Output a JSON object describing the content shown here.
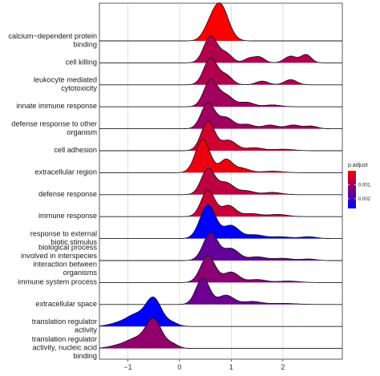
{
  "chart_data": {
    "type": "ridgeline",
    "x_ticks": [
      -1,
      0,
      1,
      2
    ],
    "xlim": [
      -1.55,
      3.15
    ],
    "grid": true,
    "legend_placement": "right",
    "color_scale": {
      "title": "p.adjust",
      "ticks": [
        0.001,
        0.002
      ],
      "tick_labels": [
        "0.001",
        "0.002"
      ],
      "domain": [
        0.0,
        0.0027
      ],
      "low_color": "#ff0000",
      "high_color": "#0000ff"
    },
    "rows": [
      {
        "label": "calcium−dependent protein binding",
        "p_adjust": 2e-05,
        "components": [
          [
            0.78,
            0.16,
            1.0
          ],
          [
            0.55,
            0.12,
            0.18
          ]
        ]
      },
      {
        "label": "cell killing",
        "p_adjust": 0.00082,
        "components": [
          [
            0.6,
            0.13,
            0.72
          ],
          [
            0.9,
            0.12,
            0.25
          ],
          [
            1.35,
            0.1,
            0.12
          ],
          [
            1.55,
            0.1,
            0.15
          ],
          [
            2.15,
            0.12,
            0.18
          ],
          [
            2.45,
            0.1,
            0.22
          ]
        ]
      },
      {
        "label": "leukocyte mediated cytotoxicity",
        "p_adjust": 0.00083,
        "components": [
          [
            0.6,
            0.13,
            0.72
          ],
          [
            0.9,
            0.12,
            0.25
          ],
          [
            1.6,
            0.12,
            0.1
          ],
          [
            2.15,
            0.12,
            0.14
          ]
        ]
      },
      {
        "label": "innate immune response",
        "p_adjust": 0.00098,
        "components": [
          [
            0.6,
            0.13,
            0.72
          ],
          [
            0.9,
            0.14,
            0.3
          ],
          [
            1.3,
            0.14,
            0.12
          ],
          [
            1.8,
            0.16,
            0.05
          ]
        ]
      },
      {
        "label": "defense response to other organism",
        "p_adjust": 0.00102,
        "components": [
          [
            0.55,
            0.13,
            0.7
          ],
          [
            0.9,
            0.14,
            0.3
          ],
          [
            1.3,
            0.14,
            0.12
          ],
          [
            1.75,
            0.14,
            0.1
          ],
          [
            2.2,
            0.14,
            0.1
          ],
          [
            2.55,
            0.12,
            0.07
          ]
        ]
      },
      {
        "label": "cell adhesion",
        "p_adjust": 0.0005,
        "components": [
          [
            0.55,
            0.13,
            0.8
          ],
          [
            0.95,
            0.15,
            0.28
          ],
          [
            1.45,
            0.16,
            0.08
          ],
          [
            2.0,
            0.2,
            0.04
          ]
        ]
      },
      {
        "label": "extracellular region",
        "p_adjust": 0.00018,
        "components": [
          [
            0.45,
            0.14,
            0.9
          ],
          [
            0.9,
            0.12,
            0.35
          ],
          [
            1.2,
            0.15,
            0.12
          ],
          [
            1.8,
            0.2,
            0.04
          ]
        ]
      },
      {
        "label": "defense response",
        "p_adjust": 0.00068,
        "components": [
          [
            0.55,
            0.13,
            0.7
          ],
          [
            0.9,
            0.15,
            0.32
          ],
          [
            1.3,
            0.15,
            0.1
          ],
          [
            1.8,
            0.17,
            0.06
          ]
        ]
      },
      {
        "label": "immune response",
        "p_adjust": 0.00058,
        "components": [
          [
            0.55,
            0.13,
            0.72
          ],
          [
            0.95,
            0.14,
            0.3
          ],
          [
            1.4,
            0.16,
            0.08
          ],
          [
            1.9,
            0.18,
            0.06
          ]
        ]
      },
      {
        "label": "response to external biotic stimulus",
        "p_adjust": 0.0027,
        "components": [
          [
            0.55,
            0.15,
            0.92
          ],
          [
            1.0,
            0.15,
            0.35
          ],
          [
            1.45,
            0.17,
            0.1
          ],
          [
            1.95,
            0.2,
            0.05
          ],
          [
            2.5,
            0.15,
            0.05
          ]
        ]
      },
      {
        "label": "biological process involved in interspecies interaction between organisms",
        "p_adjust": 0.00165,
        "components": [
          [
            0.6,
            0.14,
            0.75
          ],
          [
            1.0,
            0.15,
            0.32
          ],
          [
            1.5,
            0.17,
            0.1
          ],
          [
            2.0,
            0.18,
            0.06
          ],
          [
            2.5,
            0.14,
            0.04
          ]
        ]
      },
      {
        "label": "immune system process",
        "p_adjust": 0.00122,
        "components": [
          [
            0.55,
            0.14,
            0.72
          ],
          [
            1.0,
            0.15,
            0.28
          ],
          [
            1.5,
            0.17,
            0.08
          ],
          [
            2.1,
            0.2,
            0.04
          ]
        ]
      },
      {
        "label": "extracellular space",
        "p_adjust": 0.00155,
        "components": [
          [
            0.45,
            0.13,
            0.72
          ],
          [
            0.9,
            0.15,
            0.25
          ],
          [
            1.4,
            0.18,
            0.08
          ],
          [
            2.0,
            0.25,
            0.03
          ]
        ]
      },
      {
        "label": "translation regulator activity",
        "p_adjust": 0.0027,
        "components": [
          [
            -0.5,
            0.15,
            0.75
          ],
          [
            -0.85,
            0.18,
            0.3
          ],
          [
            -1.2,
            0.18,
            0.08
          ],
          [
            -0.15,
            0.12,
            0.1
          ]
        ]
      },
      {
        "label": "translation regulator activity, nucleic acid binding",
        "p_adjust": 0.00115,
        "components": [
          [
            -0.5,
            0.15,
            0.78
          ],
          [
            -0.85,
            0.18,
            0.25
          ],
          [
            -1.2,
            0.18,
            0.07
          ],
          [
            -0.15,
            0.12,
            0.12
          ]
        ]
      }
    ]
  }
}
